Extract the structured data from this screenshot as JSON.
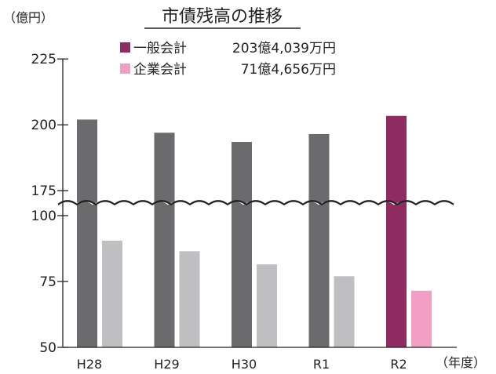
{
  "chart_data": {
    "type": "bar",
    "title": "市債残高の推移",
    "unit_label": "（億円）",
    "x_unit_label": "（年度）",
    "categories": [
      "H28",
      "H29",
      "H30",
      "R1",
      "R2"
    ],
    "series": [
      {
        "name": "一般会計",
        "values": [
          202,
          197,
          193.5,
          196.5,
          203.4
        ]
      },
      {
        "name": "企業会計",
        "values": [
          90.5,
          86.5,
          81.5,
          77,
          71.5
        ]
      }
    ],
    "highlight_category": "R2",
    "y_ticks": [
      50,
      75,
      100,
      175,
      200,
      225
    ],
    "ylim": [
      50,
      225
    ],
    "axis_break": [
      102,
      172
    ],
    "legend": [
      {
        "name": "一般会計",
        "value": "203億4,039万円"
      },
      {
        "name": "企業会計",
        "value": "71億4,656万円"
      }
    ],
    "legend_position": "top",
    "grid": false
  },
  "colors": {
    "general_past": "#6b6b6d",
    "general_current": "#8e2b61",
    "enterprise_past": "#bfbfc1",
    "enterprise_current": "#f29ec5",
    "axis": "#222222"
  }
}
